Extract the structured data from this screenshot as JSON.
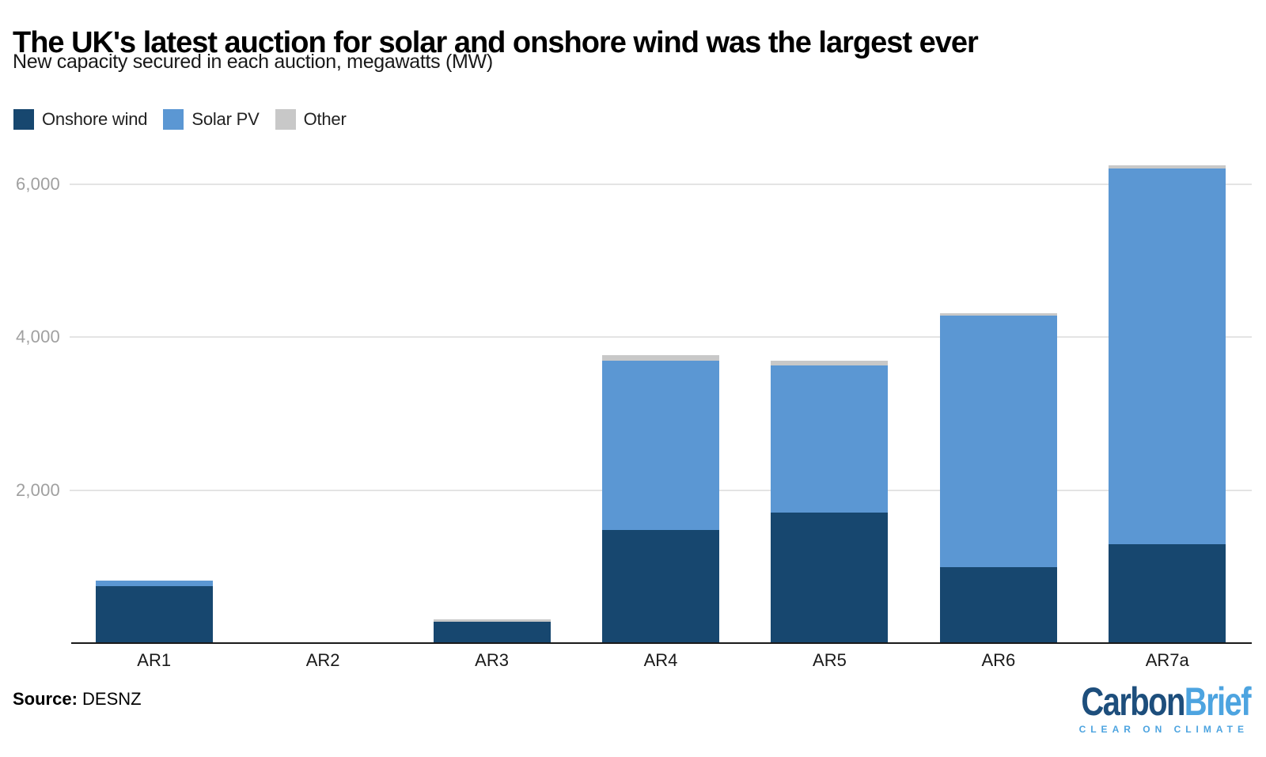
{
  "title": "The UK's latest auction for solar and onshore wind was the largest ever",
  "subtitle": "New capacity secured in each auction, megawatts (MW)",
  "legend": [
    {
      "label": "Onshore wind",
      "color": "#17476f"
    },
    {
      "label": "Solar PV",
      "color": "#5b97d3"
    },
    {
      "label": "Other",
      "color": "#c8c8c8"
    }
  ],
  "chart_data": {
    "type": "bar",
    "stacked": true,
    "title": "The UK's latest auction for solar and onshore wind was the largest ever",
    "subtitle": "New capacity secured in each auction, megawatts (MW)",
    "xlabel": "",
    "ylabel": "megawatts (MW)",
    "categories": [
      "AR1",
      "AR2",
      "AR3",
      "AR4",
      "AR5",
      "AR6",
      "AR7a"
    ],
    "series": [
      {
        "name": "Onshore wind",
        "color": "#17476f",
        "values": [
          749,
          0,
          275,
          1481,
          1704,
          990,
          1295
        ]
      },
      {
        "name": "Solar PV",
        "color": "#5b97d3",
        "values": [
          72,
          0,
          0,
          2209,
          1928,
          3293,
          4911
        ]
      },
      {
        "name": "Other",
        "color": "#c8c8c8",
        "values": [
          0,
          0,
          31,
          80,
          62,
          28,
          44
        ]
      }
    ],
    "ylim": [
      0,
      6400
    ],
    "yticks": [
      2000,
      4000,
      6000
    ],
    "ytick_labels": [
      "2,000",
      "4,000",
      "6,000"
    ],
    "grid": "horizontal",
    "legend_position": "top-left"
  },
  "source": {
    "label": "Source:",
    "value": "DESNZ"
  },
  "logo": {
    "part1": "Carbon",
    "part2": "Brief",
    "tagline": "CLEAR ON CLIMATE",
    "color_dark": "#1d4e7c",
    "color_light": "#4da4e0"
  }
}
